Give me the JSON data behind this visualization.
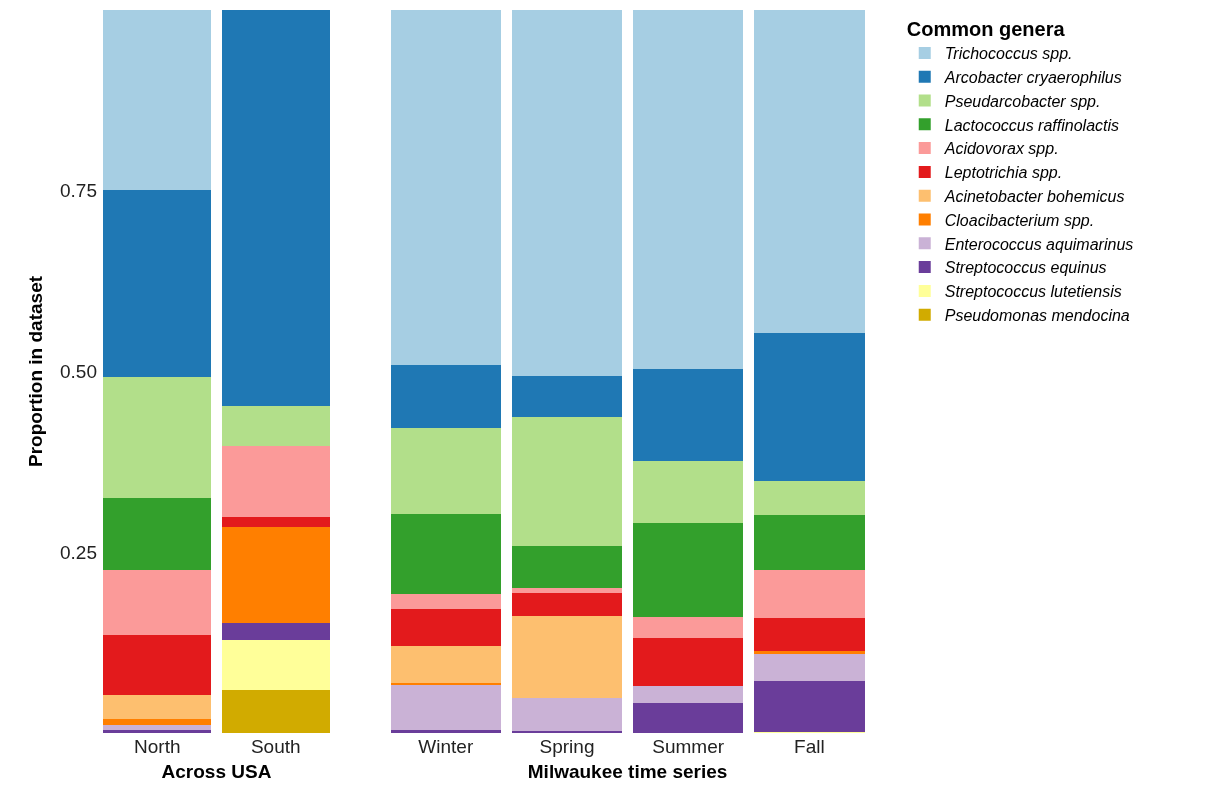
{
  "chart_data": [
    {
      "type": "bar",
      "stacked": true,
      "categories": [
        "North",
        "South"
      ],
      "xlabel": "Across USA",
      "ylabel": "Proportion in dataset",
      "ylim": [
        0,
        1
      ],
      "yticks": [
        0.25,
        {
          "value": 0.5,
          "label": "0.50"
        },
        0.75
      ],
      "grid": false,
      "legend": "right",
      "series": [
        {
          "name": "Pseudomonas mendocina",
          "color": "#d1ab00",
          "values": [
            0,
            0.06
          ]
        },
        {
          "name": "Streptococcus lutetiensis",
          "color": "#ffff99",
          "values": [
            0,
            0.069
          ]
        },
        {
          "name": "Streptococcus equinus",
          "color": "#6a3d9a",
          "values": [
            0.004,
            0.023
          ]
        },
        {
          "name": "Enterococcus aquimarinus",
          "color": "#cab2d6",
          "values": [
            0.007,
            0
          ]
        },
        {
          "name": "Cloacibacterium spp.",
          "color": "#ff7f00",
          "values": [
            0.008,
            0.133
          ]
        },
        {
          "name": "Acinetobacter bohemicus",
          "color": "#fdbf6f",
          "values": [
            0.033,
            0
          ]
        },
        {
          "name": "Leptotrichia spp.",
          "color": "#e31a1c",
          "values": [
            0.084,
            0.014
          ]
        },
        {
          "name": "Acidovorax spp.",
          "color": "#fb9a99",
          "values": [
            0.09,
            0.098
          ]
        },
        {
          "name": "Lactococcus raffinolactis",
          "color": "#33a02c",
          "values": [
            0.099,
            0
          ]
        },
        {
          "name": "Pseudarcobacter spp.",
          "color": "#b2df8a",
          "values": [
            0.168,
            0.055
          ]
        },
        {
          "name": "Arcobacter cryaerophilus",
          "color": "#1f78b4",
          "values": [
            0.258,
            0.548
          ]
        },
        {
          "name": "Trichococcus spp.",
          "color": "#a6cee3",
          "values": [
            0.249,
            0
          ]
        }
      ]
    },
    {
      "type": "bar",
      "stacked": true,
      "categories": [
        "Winter",
        "Spring",
        "Summer",
        "Fall"
      ],
      "xlabel": "Milwaukee time series",
      "ylim": [
        0,
        1
      ],
      "tick_labels": "x",
      "grid": false,
      "legend": "right",
      "legend_title": "Common genera",
      "series": [
        {
          "name": "Pseudomonas mendocina",
          "color": "#d1ab00",
          "values": [
            0,
            0,
            0,
            0
          ]
        },
        {
          "name": "Streptococcus lutetiensis",
          "color": "#ffff99",
          "values": [
            0,
            0,
            0,
            0.002
          ]
        },
        {
          "name": "Streptococcus equinus",
          "color": "#6a3d9a",
          "values": [
            0.004,
            0.003,
            0.042,
            0.07
          ]
        },
        {
          "name": "Enterococcus aquimarinus",
          "color": "#cab2d6",
          "values": [
            0.063,
            0.046,
            0.023,
            0.037
          ]
        },
        {
          "name": "Cloacibacterium spp.",
          "color": "#ff7f00",
          "values": [
            0.002,
            0,
            0,
            0.005
          ]
        },
        {
          "name": "Acinetobacter bohemicus",
          "color": "#fdbf6f",
          "values": [
            0.051,
            0.113,
            0,
            0
          ]
        },
        {
          "name": "Leptotrichia spp.",
          "color": "#e31a1c",
          "values": [
            0.052,
            0.032,
            0.067,
            0.045
          ]
        },
        {
          "name": "Acidovorax spp.",
          "color": "#fb9a99",
          "values": [
            0.02,
            0.006,
            0.028,
            0.067
          ]
        },
        {
          "name": "Lactococcus raffinolactis",
          "color": "#33a02c",
          "values": [
            0.111,
            0.059,
            0.13,
            0.076
          ]
        },
        {
          "name": "Pseudarcobacter spp.",
          "color": "#b2df8a",
          "values": [
            0.119,
            0.178,
            0.086,
            0.047
          ]
        },
        {
          "name": "Arcobacter cryaerophilus",
          "color": "#1f78b4",
          "values": [
            0.087,
            0.057,
            0.128,
            0.204
          ]
        },
        {
          "name": "Trichococcus spp.",
          "color": "#a6cee3",
          "values": [
            0.491,
            0.506,
            0.496,
            0.447
          ]
        }
      ]
    }
  ]
}
